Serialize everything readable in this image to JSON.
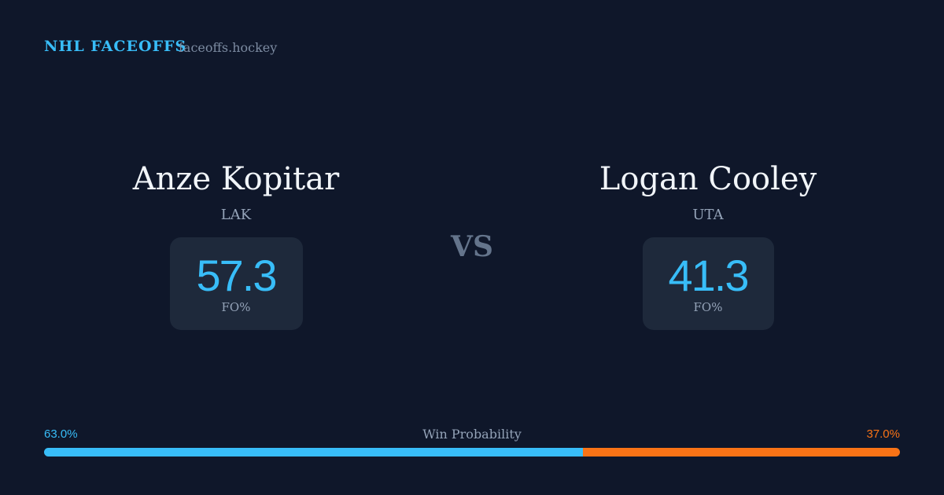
{
  "header": {
    "title": "NHL FACEOFFS",
    "site": "faceoffs.hockey"
  },
  "players": [
    {
      "name": "Anze Kopitar",
      "team": "LAK",
      "fo_pct": 57.3,
      "fo_label": "FO%"
    },
    {
      "name": "Logan Cooley",
      "team": "UTA",
      "fo_pct": 41.3,
      "fo_label": "FO%"
    }
  ],
  "vs": "VS",
  "win_probability": {
    "label": "Win Probability",
    "home": {
      "value": 63.0,
      "label": "63.0%",
      "color": "#38bdf8"
    },
    "away": {
      "value": 37.0,
      "label": "37.0%",
      "color": "#f97316"
    }
  }
}
